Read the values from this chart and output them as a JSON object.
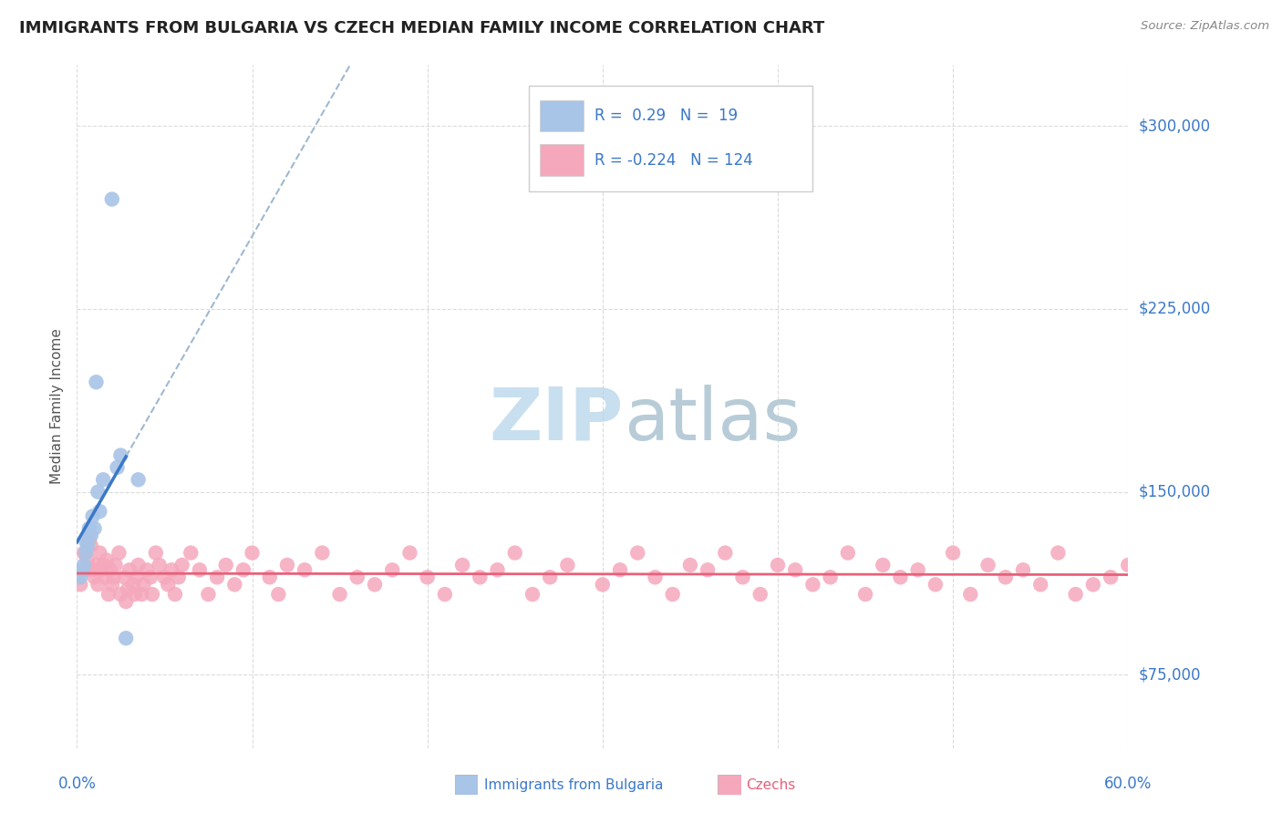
{
  "title": "IMMIGRANTS FROM BULGARIA VS CZECH MEDIAN FAMILY INCOME CORRELATION CHART",
  "source": "Source: ZipAtlas.com",
  "ylabel": "Median Family Income",
  "xlim": [
    0.0,
    0.6
  ],
  "ylim": [
    45000,
    325000
  ],
  "yticks": [
    75000,
    150000,
    225000,
    300000
  ],
  "ytick_labels": [
    "$75,000",
    "$150,000",
    "$225,000",
    "$300,000"
  ],
  "xticks": [
    0.0,
    0.1,
    0.2,
    0.3,
    0.4,
    0.5,
    0.6
  ],
  "R_bulgaria": 0.29,
  "N_bulgaria": 19,
  "R_czech": -0.224,
  "N_czech": 124,
  "bulgaria_scatter_color": "#a8c4e6",
  "czech_scatter_color": "#f5a8bc",
  "bulgaria_line_color": "#3a78c9",
  "czech_line_color": "#e8607a",
  "dashed_line_color": "#a0b8d0",
  "watermark_color": "#c8dff0",
  "bulgaria_scatter_x": [
    0.002,
    0.003,
    0.004,
    0.005,
    0.005,
    0.006,
    0.007,
    0.008,
    0.009,
    0.01,
    0.011,
    0.012,
    0.013,
    0.015,
    0.02,
    0.023,
    0.025,
    0.028,
    0.035
  ],
  "bulgaria_scatter_y": [
    115000,
    118000,
    120000,
    125000,
    130000,
    128000,
    135000,
    132000,
    140000,
    135000,
    195000,
    150000,
    142000,
    155000,
    270000,
    160000,
    165000,
    90000,
    155000
  ],
  "czech_scatter_x": [
    0.002,
    0.004,
    0.005,
    0.006,
    0.007,
    0.008,
    0.009,
    0.01,
    0.011,
    0.012,
    0.013,
    0.014,
    0.015,
    0.016,
    0.017,
    0.018,
    0.019,
    0.02,
    0.021,
    0.022,
    0.024,
    0.025,
    0.027,
    0.028,
    0.029,
    0.03,
    0.032,
    0.033,
    0.034,
    0.035,
    0.037,
    0.038,
    0.04,
    0.042,
    0.043,
    0.045,
    0.047,
    0.05,
    0.052,
    0.054,
    0.056,
    0.058,
    0.06,
    0.065,
    0.07,
    0.075,
    0.08,
    0.085,
    0.09,
    0.095,
    0.1,
    0.11,
    0.115,
    0.12,
    0.13,
    0.14,
    0.15,
    0.16,
    0.17,
    0.18,
    0.19,
    0.2,
    0.21,
    0.22,
    0.23,
    0.24,
    0.25,
    0.26,
    0.27,
    0.28,
    0.3,
    0.31,
    0.32,
    0.33,
    0.34,
    0.35,
    0.36,
    0.37,
    0.38,
    0.39,
    0.4,
    0.41,
    0.42,
    0.43,
    0.44,
    0.45,
    0.46,
    0.47,
    0.48,
    0.49,
    0.5,
    0.51,
    0.52,
    0.53,
    0.54,
    0.55,
    0.56,
    0.57,
    0.58,
    0.59,
    0.6
  ],
  "czech_scatter_y": [
    112000,
    125000,
    118000,
    122000,
    130000,
    128000,
    118000,
    115000,
    120000,
    112000,
    125000,
    118000,
    120000,
    115000,
    122000,
    108000,
    118000,
    112000,
    115000,
    120000,
    125000,
    108000,
    115000,
    105000,
    110000,
    118000,
    112000,
    108000,
    115000,
    120000,
    108000,
    112000,
    118000,
    115000,
    108000,
    125000,
    120000,
    115000,
    112000,
    118000,
    108000,
    115000,
    120000,
    125000,
    118000,
    108000,
    115000,
    120000,
    112000,
    118000,
    125000,
    115000,
    108000,
    120000,
    118000,
    125000,
    108000,
    115000,
    112000,
    118000,
    125000,
    115000,
    108000,
    120000,
    115000,
    118000,
    125000,
    108000,
    115000,
    120000,
    112000,
    118000,
    125000,
    115000,
    108000,
    120000,
    118000,
    125000,
    115000,
    108000,
    120000,
    118000,
    112000,
    115000,
    125000,
    108000,
    120000,
    115000,
    118000,
    112000,
    125000,
    108000,
    120000,
    115000,
    118000,
    112000,
    125000,
    108000,
    112000,
    115000,
    120000
  ]
}
